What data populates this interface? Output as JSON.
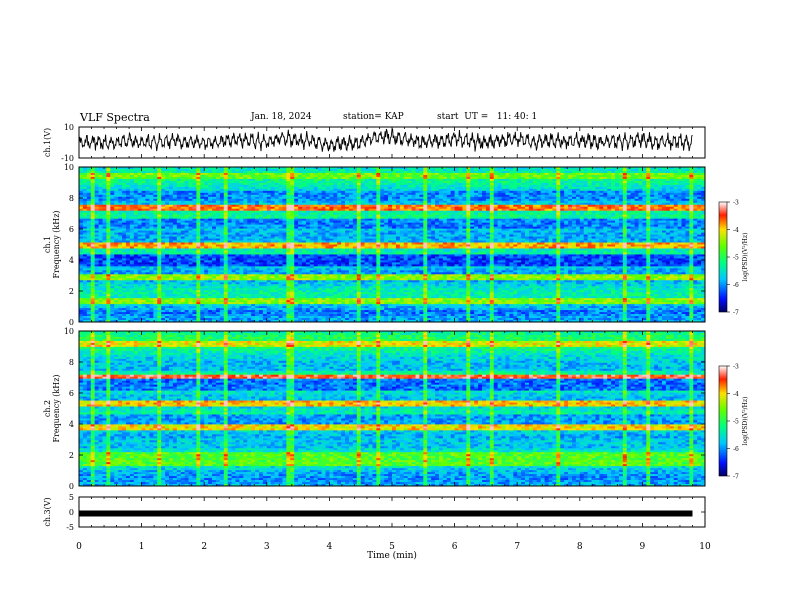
{
  "header": {
    "title": "VLF Spectra",
    "date": "Jan. 18, 2024",
    "station": "station= KAP",
    "start": "start  UT =   11: 40: 1"
  },
  "chart_data": [
    {
      "type": "line",
      "title": "",
      "ylabel": "ch.1(V)",
      "ylim": [
        -10,
        10
      ],
      "yticks": [
        "10",
        "-10"
      ],
      "xlim": [
        0,
        10
      ],
      "x": [
        0,
        0.25,
        0.5,
        0.75,
        1.0,
        1.25,
        1.5,
        1.75,
        2.0,
        2.25,
        2.5,
        2.75,
        3.0,
        3.25,
        3.5,
        3.75,
        4.0,
        4.25,
        4.5,
        4.75,
        5.0,
        5.25,
        5.5,
        5.75,
        6.0,
        6.25,
        6.5,
        6.75,
        7.0,
        7.25,
        7.5,
        7.75,
        8.0,
        8.25,
        8.5,
        8.75,
        9.0,
        9.25,
        9.5,
        9.75
      ],
      "values": [
        0,
        1,
        -1,
        2,
        0,
        1,
        3,
        0,
        -1,
        1,
        4,
        2,
        0,
        5,
        3,
        1,
        -2,
        -1,
        0,
        6,
        7,
        3,
        0,
        2,
        5,
        1,
        0,
        3,
        4,
        0,
        2,
        1,
        3,
        0,
        2,
        1,
        3,
        0,
        1,
        0
      ]
    },
    {
      "type": "heatmap",
      "ylabel": "ch.1\nFrequency  (kHz)",
      "ylim": [
        0,
        10
      ],
      "yticks": [
        "0",
        "2",
        "4",
        "6",
        "8",
        "10"
      ],
      "xlim": [
        0,
        10
      ],
      "colorbar": {
        "label": "log(PSD)(V²/Hz)",
        "range": [
          -7,
          -3
        ],
        "ticks": [
          "-3",
          "-4",
          "-5",
          "-6",
          "-7"
        ]
      }
    },
    {
      "type": "heatmap",
      "ylabel": "ch.2\nFrequency  (kHz)",
      "ylim": [
        0,
        10
      ],
      "yticks": [
        "0",
        "2",
        "4",
        "6",
        "8",
        "10"
      ],
      "xlim": [
        0,
        10
      ],
      "colorbar": {
        "label": "log(PSD)(V²/Hz)",
        "range": [
          -7,
          -3
        ],
        "ticks": [
          "-3",
          "-4",
          "-5",
          "-6",
          "-7"
        ]
      }
    },
    {
      "type": "line",
      "ylabel": "ch.3(V)",
      "ylim": [
        -5,
        5
      ],
      "yticks": [
        "5",
        "0",
        "-5"
      ],
      "xlim": [
        0,
        9.8
      ],
      "x": [
        0,
        9.8
      ],
      "values": [
        -0.5,
        -0.5
      ]
    }
  ],
  "xaxis": {
    "label": "Time  (min)",
    "ticks": [
      "0",
      "1",
      "2",
      "3",
      "4",
      "5",
      "6",
      "7",
      "8",
      "9",
      "10"
    ]
  }
}
